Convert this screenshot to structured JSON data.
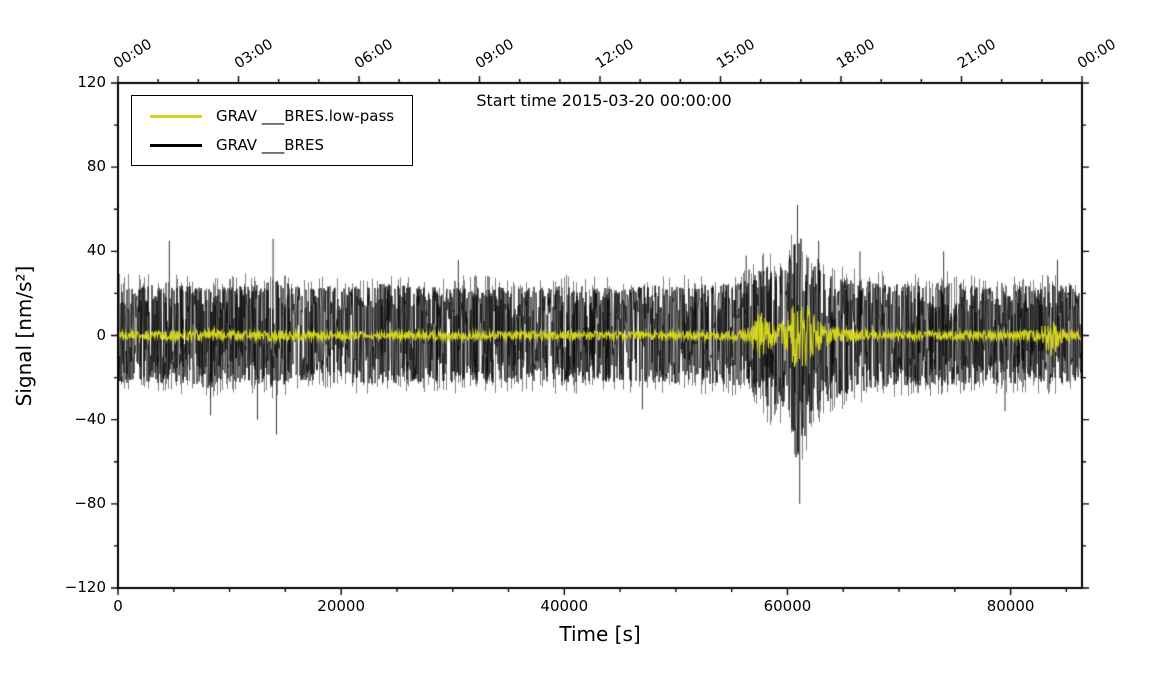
{
  "chart_data": {
    "type": "line",
    "title": "Start time 2015-03-20 00:00:00",
    "xlabel": "Time [s]",
    "ylabel": "Signal [nm/s²]",
    "xlim": [
      0,
      86400
    ],
    "ylim": [
      -120,
      120
    ],
    "grid": false,
    "legend_position": "top-left",
    "x_axis": {
      "major": [
        0,
        20000,
        40000,
        60000,
        80000
      ],
      "minor_step": 5000
    },
    "y_axis": {
      "major": [
        -120,
        -80,
        -40,
        0,
        40,
        80,
        120
      ],
      "minor_step": 20
    },
    "top_axis": {
      "minor_step_s": 3600,
      "ticks": [
        [
          0,
          "00:00"
        ],
        [
          10800,
          "03:00"
        ],
        [
          21600,
          "06:00"
        ],
        [
          32400,
          "09:00"
        ],
        [
          43200,
          "12:00"
        ],
        [
          54000,
          "15:00"
        ],
        [
          64800,
          "18:00"
        ],
        [
          75600,
          "21:00"
        ],
        [
          86400,
          "00:00"
        ]
      ]
    },
    "legend": [
      {
        "label": "GRAV ___BRES.low-pass",
        "color": "#d4d41e"
      },
      {
        "label": "GRAV ___BRES",
        "color": "#000000"
      }
    ],
    "series": [
      {
        "name": "GRAV ___BRES.low-pass",
        "color": "#d4d41e",
        "kind": "noise-envelope",
        "envelope_format": [
          "time_s",
          "amplitude"
        ],
        "envelope": [
          [
            0,
            2.3
          ],
          [
            4000,
            2.1
          ],
          [
            7600,
            3.0
          ],
          [
            8600,
            3.0
          ],
          [
            9400,
            2.2
          ],
          [
            12000,
            2.2
          ],
          [
            14000,
            2.5
          ],
          [
            16000,
            2.2
          ],
          [
            20000,
            2.0
          ],
          [
            25000,
            2.0
          ],
          [
            30000,
            2.2
          ],
          [
            35000,
            2.0
          ],
          [
            40000,
            2.3
          ],
          [
            45000,
            2.0
          ],
          [
            50000,
            2.0
          ],
          [
            54000,
            2.2
          ],
          [
            56200,
            2.6
          ],
          [
            57000,
            7
          ],
          [
            57500,
            12
          ],
          [
            58000,
            10
          ],
          [
            58600,
            6
          ],
          [
            59200,
            5
          ],
          [
            59800,
            7
          ],
          [
            60300,
            12
          ],
          [
            60800,
            18
          ],
          [
            61200,
            20
          ],
          [
            61600,
            16
          ],
          [
            62100,
            12
          ],
          [
            62600,
            9
          ],
          [
            63200,
            6
          ],
          [
            64000,
            4.5
          ],
          [
            65000,
            3.5
          ],
          [
            66000,
            3
          ],
          [
            68000,
            2.4
          ],
          [
            72000,
            2.2
          ],
          [
            76000,
            2.2
          ],
          [
            80000,
            2.3
          ],
          [
            82500,
            2.6
          ],
          [
            83300,
            8
          ],
          [
            83700,
            11
          ],
          [
            84100,
            7
          ],
          [
            84600,
            3.5
          ],
          [
            85500,
            2.5
          ],
          [
            86400,
            2.4
          ]
        ]
      },
      {
        "name": "GRAV ___BRES",
        "color": "#000000",
        "kind": "noise-envelope",
        "envelope_format": [
          "time_s",
          "pos_amplitude",
          "neg_amplitude"
        ],
        "envelope": [
          [
            0,
            31,
            28
          ],
          [
            2000,
            29,
            27
          ],
          [
            4000,
            30,
            28
          ],
          [
            6000,
            29,
            28
          ],
          [
            8000,
            29,
            31
          ],
          [
            10000,
            29,
            27
          ],
          [
            12000,
            30,
            29
          ],
          [
            14000,
            32,
            30
          ],
          [
            16000,
            29,
            27
          ],
          [
            18000,
            28,
            27
          ],
          [
            20000,
            29,
            28
          ],
          [
            24000,
            30,
            28
          ],
          [
            28000,
            28,
            27
          ],
          [
            32000,
            29,
            28
          ],
          [
            36000,
            28,
            27
          ],
          [
            40000,
            29,
            28
          ],
          [
            44000,
            28,
            27
          ],
          [
            48000,
            29,
            28
          ],
          [
            52000,
            29,
            28
          ],
          [
            55000,
            30,
            29
          ],
          [
            56500,
            32,
            31
          ],
          [
            57500,
            38,
            36
          ],
          [
            58200,
            42,
            44
          ],
          [
            59000,
            38,
            40
          ],
          [
            60000,
            44,
            48
          ],
          [
            60600,
            56,
            64
          ],
          [
            61000,
            62,
            80
          ],
          [
            61400,
            52,
            62
          ],
          [
            62000,
            45,
            52
          ],
          [
            62600,
            40,
            44
          ],
          [
            63500,
            36,
            39
          ],
          [
            64500,
            33,
            36
          ],
          [
            66000,
            32,
            33
          ],
          [
            68000,
            31,
            31
          ],
          [
            70000,
            30,
            29
          ],
          [
            72000,
            30,
            29
          ],
          [
            74000,
            31,
            29
          ],
          [
            76000,
            29,
            28
          ],
          [
            78000,
            29,
            28
          ],
          [
            80000,
            29,
            28
          ],
          [
            82000,
            29,
            28
          ],
          [
            84000,
            30,
            28
          ],
          [
            86400,
            29,
            27
          ]
        ],
        "spikes": [
          [
            4600,
            45
          ],
          [
            8300,
            -38
          ],
          [
            12500,
            -40
          ],
          [
            13900,
            46
          ],
          [
            14200,
            -47
          ],
          [
            30500,
            36
          ],
          [
            47000,
            -35
          ],
          [
            56300,
            38
          ],
          [
            60900,
            62
          ],
          [
            61100,
            -80
          ],
          [
            62800,
            45
          ],
          [
            66500,
            40
          ],
          [
            74000,
            40
          ],
          [
            79500,
            -36
          ],
          [
            84200,
            36
          ]
        ]
      }
    ]
  }
}
